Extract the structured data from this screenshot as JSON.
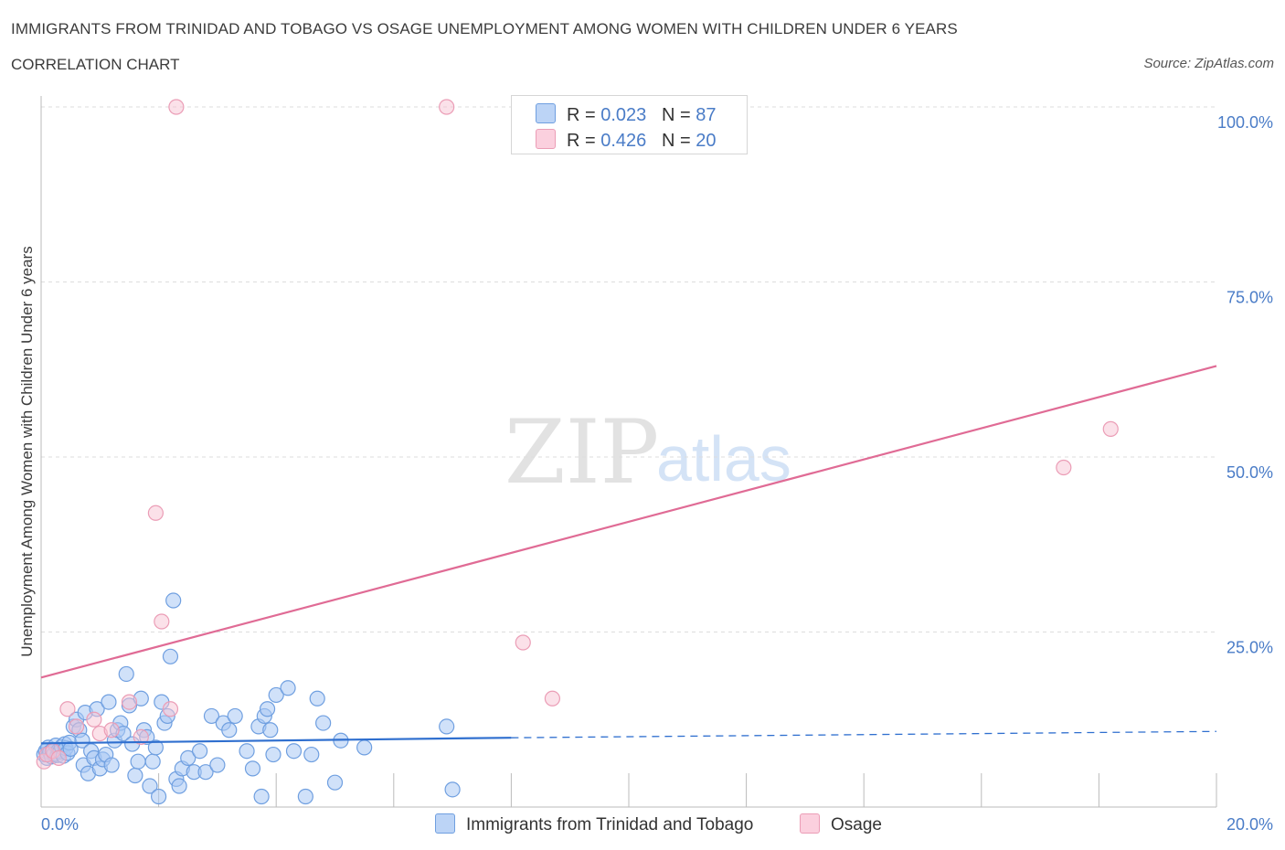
{
  "header": {
    "title": "IMMIGRANTS FROM TRINIDAD AND TOBAGO VS OSAGE UNEMPLOYMENT AMONG WOMEN WITH CHILDREN UNDER 6 YEARS",
    "subtitle": "CORRELATION CHART",
    "source": "Source: ZipAtlas.com"
  },
  "watermark": {
    "zip": "ZIP",
    "atlas": "atlas"
  },
  "legend": {
    "r_label": "R =",
    "n_label": "N =",
    "series": [
      {
        "name": "Immigrants from Trinidad and Tobago",
        "r": "0.023",
        "n": "87"
      },
      {
        "name": "Osage",
        "r": "0.426",
        "n": "20"
      }
    ]
  },
  "colors": {
    "blue_fill": "#aac8f4",
    "blue_stroke": "#6f9fe0",
    "blue_line": "#2f6fcf",
    "pink_fill": "#f8c4d4",
    "pink_stroke": "#eb9db6",
    "pink_line": "#e06b95",
    "tick": "#4a7cc7",
    "grid": "#dddddd"
  },
  "chart_data": {
    "type": "scatter",
    "title": "IMMIGRANTS FROM TRINIDAD AND TOBAGO VS OSAGE UNEMPLOYMENT AMONG WOMEN WITH CHILDREN UNDER 6 YEARS",
    "xlabel": "",
    "ylabel": "Unemployment Among Women with Children Under 6 years",
    "xlim": [
      0,
      20
    ],
    "ylim": [
      0,
      100
    ],
    "x_ticks": [
      "0.0%",
      "20.0%"
    ],
    "y_ticks": [
      {
        "value": 100,
        "label": "100.0%"
      },
      {
        "value": 75,
        "label": "75.0%"
      },
      {
        "value": 50,
        "label": "50.0%"
      },
      {
        "value": 25,
        "label": "25.0%"
      }
    ],
    "series": [
      {
        "name": "Immigrants from Trinidad and Tobago",
        "r": 0.023,
        "n": 87,
        "trend": {
          "x0": 0,
          "y0": 9.1,
          "x1": 8.0,
          "y1": 9.9,
          "dashed_to_x": 20.0,
          "dashed_to_y": 10.8
        },
        "points": [
          [
            0.05,
            7.5
          ],
          [
            0.08,
            8.0
          ],
          [
            0.1,
            7.0
          ],
          [
            0.12,
            8.5
          ],
          [
            0.15,
            7.8
          ],
          [
            0.18,
            7.2
          ],
          [
            0.2,
            8.2
          ],
          [
            0.22,
            7.6
          ],
          [
            0.25,
            8.8
          ],
          [
            0.28,
            7.4
          ],
          [
            0.3,
            8.1
          ],
          [
            0.32,
            7.9
          ],
          [
            0.35,
            8.6
          ],
          [
            0.38,
            7.3
          ],
          [
            0.4,
            9.0
          ],
          [
            0.42,
            8.4
          ],
          [
            0.45,
            7.7
          ],
          [
            0.48,
            9.2
          ],
          [
            0.5,
            8.3
          ],
          [
            0.55,
            11.5
          ],
          [
            0.6,
            12.5
          ],
          [
            0.65,
            11.0
          ],
          [
            0.7,
            9.5
          ],
          [
            0.72,
            6.0
          ],
          [
            0.75,
            13.5
          ],
          [
            0.8,
            4.8
          ],
          [
            0.85,
            8.0
          ],
          [
            0.9,
            7.0
          ],
          [
            0.95,
            14.0
          ],
          [
            1.0,
            5.5
          ],
          [
            1.05,
            6.8
          ],
          [
            1.1,
            7.5
          ],
          [
            1.15,
            15.0
          ],
          [
            1.2,
            6.0
          ],
          [
            1.25,
            9.5
          ],
          [
            1.3,
            11.0
          ],
          [
            1.35,
            12.0
          ],
          [
            1.4,
            10.5
          ],
          [
            1.45,
            19.0
          ],
          [
            1.5,
            14.5
          ],
          [
            1.55,
            9.0
          ],
          [
            1.6,
            4.5
          ],
          [
            1.65,
            6.5
          ],
          [
            1.7,
            15.5
          ],
          [
            1.75,
            11.0
          ],
          [
            1.8,
            10.0
          ],
          [
            1.85,
            3.0
          ],
          [
            1.9,
            6.5
          ],
          [
            1.95,
            8.5
          ],
          [
            2.0,
            1.5
          ],
          [
            2.05,
            15.0
          ],
          [
            2.1,
            12.0
          ],
          [
            2.15,
            13.0
          ],
          [
            2.2,
            21.5
          ],
          [
            2.25,
            29.5
          ],
          [
            2.3,
            4.0
          ],
          [
            2.35,
            3.0
          ],
          [
            2.4,
            5.5
          ],
          [
            2.5,
            7.0
          ],
          [
            2.6,
            5.0
          ],
          [
            2.7,
            8.0
          ],
          [
            2.8,
            5.0
          ],
          [
            2.9,
            13.0
          ],
          [
            3.0,
            6.0
          ],
          [
            3.1,
            12.0
          ],
          [
            3.2,
            11.0
          ],
          [
            3.3,
            13.0
          ],
          [
            3.5,
            8.0
          ],
          [
            3.6,
            5.5
          ],
          [
            3.7,
            11.5
          ],
          [
            3.75,
            1.5
          ],
          [
            3.8,
            13.0
          ],
          [
            3.85,
            14.0
          ],
          [
            3.9,
            11.0
          ],
          [
            3.95,
            7.5
          ],
          [
            4.0,
            16.0
          ],
          [
            4.2,
            17.0
          ],
          [
            4.3,
            8.0
          ],
          [
            4.5,
            1.5
          ],
          [
            4.6,
            7.5
          ],
          [
            4.7,
            15.5
          ],
          [
            4.8,
            12.0
          ],
          [
            5.0,
            3.5
          ],
          [
            5.1,
            9.5
          ],
          [
            5.5,
            8.5
          ],
          [
            6.9,
            11.5
          ],
          [
            7.0,
            2.5
          ]
        ]
      },
      {
        "name": "Osage",
        "r": 0.426,
        "n": 20,
        "trend": {
          "x0": 0,
          "y0": 18.5,
          "x1": 20.0,
          "y1": 63.0
        },
        "points": [
          [
            0.05,
            6.5
          ],
          [
            0.1,
            7.5
          ],
          [
            0.2,
            8.0
          ],
          [
            0.3,
            7.0
          ],
          [
            0.45,
            14.0
          ],
          [
            0.6,
            11.5
          ],
          [
            0.9,
            12.5
          ],
          [
            1.0,
            10.5
          ],
          [
            1.2,
            11.0
          ],
          [
            1.5,
            15.0
          ],
          [
            1.7,
            10.0
          ],
          [
            1.95,
            42.0
          ],
          [
            2.05,
            26.5
          ],
          [
            2.2,
            14.0
          ],
          [
            2.3,
            100.0
          ],
          [
            6.9,
            100.0
          ],
          [
            8.2,
            23.5
          ],
          [
            8.7,
            15.5
          ],
          [
            17.4,
            48.5
          ],
          [
            18.2,
            54.0
          ]
        ]
      }
    ]
  }
}
